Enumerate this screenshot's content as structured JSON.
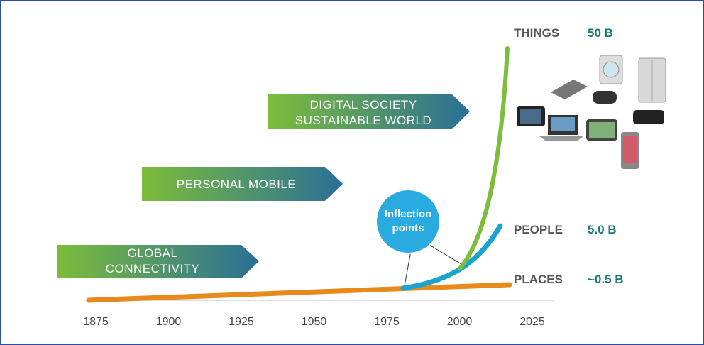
{
  "arrows": [
    {
      "lines": [
        "GLOBAL",
        "CONNECTIVITY"
      ]
    },
    {
      "lines": [
        "PERSONAL MOBILE"
      ]
    },
    {
      "lines": [
        "DIGITAL SOCIETY",
        "SUSTAINABLE WORLD"
      ]
    }
  ],
  "callout": {
    "lines": [
      "Inflection",
      "points"
    ]
  },
  "series": [
    {
      "name": "THINGS",
      "value": "50 B"
    },
    {
      "name": "PEOPLE",
      "value": "5.0 B"
    },
    {
      "name": "PLACES",
      "value": "~0.5 B"
    }
  ],
  "axis": {
    "ticks": [
      "1875",
      "1900",
      "1925",
      "1950",
      "1975",
      "2000",
      "2025"
    ]
  }
}
